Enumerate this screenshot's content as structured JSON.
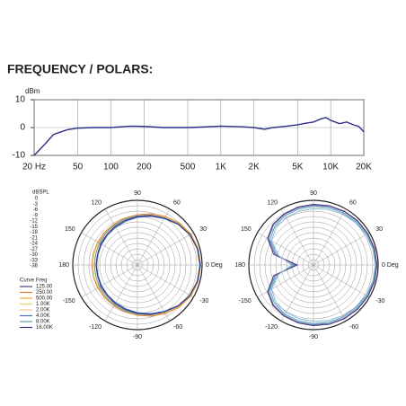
{
  "title": "FREQUENCY / POLARS:",
  "chart_data": [
    {
      "type": "line",
      "ylabel": "dBm",
      "xlog": true,
      "grid": true,
      "xlim": [
        20,
        20000
      ],
      "ylim": [
        -10,
        10
      ],
      "xticks": [
        {
          "value": 20,
          "label": "20 Hz"
        },
        50,
        100,
        200,
        500,
        {
          "value": 1000,
          "label": "1K"
        },
        {
          "value": 2000,
          "label": "2K"
        },
        {
          "value": 5000,
          "label": "5K"
        },
        {
          "value": 10000,
          "label": "10K"
        },
        {
          "value": 20000,
          "label": "20K"
        }
      ],
      "yticks": [
        10,
        0,
        -10
      ],
      "x": [
        20,
        25,
        30,
        40,
        50,
        70,
        100,
        150,
        200,
        300,
        500,
        700,
        1000,
        1500,
        2000,
        2500,
        3000,
        4000,
        5000,
        6000,
        7000,
        8000,
        9000,
        10000,
        12000,
        14000,
        16000,
        18000,
        20000
      ],
      "series": [
        {
          "color": "#2e2f8a",
          "values": [
            -10,
            -6,
            -2.5,
            -0.8,
            -0.2,
            0,
            0,
            0.5,
            0.4,
            0,
            0,
            0.2,
            0.5,
            0.3,
            0,
            -0.6,
            0,
            0.5,
            1,
            1.6,
            2,
            3,
            3.6,
            2.6,
            1.4,
            2,
            1,
            0.4,
            -1.5
          ]
        }
      ]
    },
    {
      "type": "polar",
      "rlabel": "dBSPL",
      "rlim": [
        -36,
        0
      ],
      "rticks": [
        0,
        -3,
        -6,
        -9,
        -12,
        -15,
        -18,
        -21,
        -24,
        -27,
        -30,
        -33,
        -36
      ],
      "angle_ticks": [
        {
          "value": 0,
          "label": "0 Deg"
        },
        30,
        60,
        90,
        120,
        150,
        180,
        -150,
        -120,
        -90,
        -60,
        -30
      ],
      "legend_title": [
        "Curve",
        "Freq"
      ],
      "theta": [
        0,
        15,
        30,
        45,
        60,
        75,
        90,
        105,
        120,
        135,
        150,
        165,
        180,
        195,
        210,
        225,
        240,
        255,
        270,
        285,
        300,
        315,
        330,
        345
      ],
      "series": [
        {
          "name": "125.00",
          "color": "#5b3b7c",
          "values": [
            -1,
            -1.3,
            -2.2,
            -3.8,
            -5.8,
            -7.5,
            -9,
            -10.3,
            -11.2,
            -12,
            -12.5,
            -13,
            -13,
            -13,
            -12.5,
            -12,
            -11.2,
            -10.3,
            -9,
            -7.5,
            -5.8,
            -3.8,
            -2.2,
            -1.3
          ]
        },
        {
          "name": "250.00",
          "color": "#e07a2a",
          "values": [
            -0.8,
            -1,
            -1.6,
            -3,
            -4.8,
            -6.5,
            -8,
            -9,
            -9.8,
            -10.2,
            -10.5,
            -10.6,
            -10.6,
            -10.6,
            -10.5,
            -10.2,
            -9.8,
            -9,
            -8,
            -6.5,
            -4.8,
            -3,
            -1.6,
            -1
          ]
        },
        {
          "name": "500.00",
          "color": "#f0a830",
          "values": [
            -1.2,
            -1.4,
            -2.2,
            -3.8,
            -5.8,
            -7.3,
            -8.7,
            -9.6,
            -10.4,
            -11,
            -11.6,
            -12,
            -12,
            -12,
            -11.6,
            -11,
            -10.4,
            -9.6,
            -8.7,
            -7.3,
            -5.8,
            -3.8,
            -2.2,
            -1.4
          ]
        },
        {
          "name": "1.00K",
          "color": "#f2d060",
          "values": [
            -1,
            -1.2,
            -2,
            -3.5,
            -5.5,
            -7,
            -8.5,
            -9.5,
            -10.3,
            -10.8,
            -11,
            -11,
            -11,
            -11,
            -11,
            -10.8,
            -10.3,
            -9.5,
            -8.5,
            -7,
            -5.5,
            -3.5,
            -2,
            -1.2
          ]
        },
        {
          "name": "2.00K",
          "color": "#e8c890",
          "values": [
            -1.5,
            -1.7,
            -2.5,
            -4,
            -6,
            -7.8,
            -9.2,
            -10.2,
            -11,
            -11.8,
            -12.8,
            -13.5,
            -14,
            -13.5,
            -12.8,
            -11.8,
            -11,
            -10.2,
            -9.2,
            -7.8,
            -6,
            -4,
            -2.5,
            -1.7
          ]
        },
        {
          "name": "4.00K",
          "color": "#4a70c0",
          "values": [
            -1,
            -1.3,
            -2.3,
            -4,
            -6.2,
            -8,
            -9.5,
            -10.8,
            -11.8,
            -12.5,
            -13,
            -13.2,
            -13.2,
            -13.2,
            -13,
            -12.5,
            -11.8,
            -10.8,
            -9.5,
            -8,
            -6.2,
            -4,
            -2.3,
            -1.3
          ]
        },
        {
          "name": "8.00K",
          "color": "#5fa0b0",
          "values": [
            -1.2,
            -1.4,
            -2.2,
            -3.8,
            -5.8,
            -7.3,
            -8.7,
            -9.6,
            -10.4,
            -11,
            -11.6,
            -12,
            -12,
            -12,
            -11.6,
            -11,
            -10.4,
            -9.6,
            -8.7,
            -7.3,
            -5.8,
            -3.8,
            -2.2,
            -1.4
          ]
        },
        {
          "name": "16.00K",
          "color": "#303080",
          "values": [
            -1,
            -1.3,
            -2.2,
            -3.8,
            -5.8,
            -7.5,
            -9,
            -10.3,
            -11.2,
            -12,
            -12.5,
            -13,
            -13,
            -13,
            -12.5,
            -12,
            -11.2,
            -10.3,
            -9,
            -7.5,
            -5.8,
            -3.8,
            -2.2,
            -1.3
          ]
        }
      ]
    },
    {
      "type": "polar",
      "rlim": [
        -36,
        0
      ],
      "rticks": [
        0,
        -3,
        -6,
        -9,
        -12,
        -15,
        -18,
        -21,
        -24,
        -27,
        -30,
        -33,
        -36
      ],
      "angle_ticks": [
        {
          "value": 0,
          "label": "0 Deg"
        },
        30,
        60,
        90,
        120,
        150,
        180,
        -150,
        -120,
        -90,
        -60,
        -30
      ],
      "theta": [
        0,
        15,
        30,
        45,
        60,
        75,
        90,
        105,
        120,
        135,
        150,
        165,
        180,
        195,
        210,
        225,
        240,
        255,
        270,
        285,
        300,
        315,
        330,
        345
      ],
      "series": [
        {
          "color": "#4a70c0",
          "values": [
            -0.8,
            -1,
            -1.2,
            -1.5,
            -1.8,
            -2.2,
            -2.6,
            -3,
            -3.5,
            -4.5,
            -7,
            -14,
            -26,
            -14,
            -7,
            -4.5,
            -3.5,
            -3,
            -2.6,
            -2.2,
            -1.8,
            -1.5,
            -1.2,
            -1
          ]
        },
        {
          "color": "#5fa0b0",
          "values": [
            -1.2,
            -1.4,
            -1.8,
            -2.2,
            -2.6,
            -3,
            -3.4,
            -3.8,
            -4.3,
            -5.5,
            -8,
            -15,
            -25,
            -15,
            -8,
            -5.5,
            -4.3,
            -3.8,
            -3.4,
            -3,
            -2.6,
            -2.2,
            -1.8,
            -1.4
          ]
        },
        {
          "color": "#5b3b7c",
          "values": [
            -0.6,
            -0.8,
            -1,
            -1.2,
            -1.5,
            -1.8,
            -2.2,
            -2.6,
            -3.2,
            -4,
            -6.5,
            -13,
            -27,
            -13,
            -6.5,
            -4,
            -3.2,
            -2.6,
            -2.2,
            -1.8,
            -1.5,
            -1.2,
            -1,
            -0.8
          ]
        },
        {
          "color": "#86b8d8",
          "values": [
            -1.6,
            -1.8,
            -2.2,
            -2.8,
            -3.4,
            -4,
            -4.6,
            -5,
            -5.5,
            -6.5,
            -9,
            -16,
            -24,
            -16,
            -9,
            -6.5,
            -5.5,
            -5,
            -4.6,
            -4,
            -3.4,
            -2.8,
            -2.2,
            -1.8
          ]
        }
      ]
    }
  ]
}
